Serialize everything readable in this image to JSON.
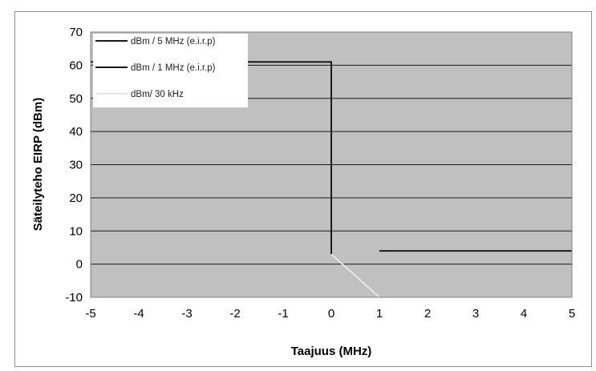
{
  "chart_data": {
    "type": "line",
    "xlabel": "Taajuus (MHz)",
    "ylabel": "Säteilyteho EIRP (dBm)",
    "xlim": [
      -5,
      5
    ],
    "ylim": [
      -10,
      70
    ],
    "xticks": [
      -5,
      -4,
      -3,
      -2,
      -1,
      0,
      1,
      2,
      3,
      4,
      5
    ],
    "yticks": [
      -10,
      0,
      10,
      20,
      30,
      40,
      50,
      60,
      70
    ],
    "grid": true,
    "legend_position": "top-left",
    "series": [
      {
        "name": "dBm / 5 MHz (e.i.r.p)",
        "color": "#1a1a1a",
        "x": [
          -5,
          0,
          0
        ],
        "y": [
          61,
          61,
          3
        ]
      },
      {
        "name": "dBm / 1 MHz (e.i.r.p)",
        "color": "#1a1a1a",
        "x": [
          1,
          5
        ],
        "y": [
          4,
          4
        ]
      },
      {
        "name": "dBm/ 30 kHz",
        "color": "#e6e6e6",
        "x": [
          0,
          1
        ],
        "y": [
          3,
          -10
        ]
      }
    ]
  }
}
